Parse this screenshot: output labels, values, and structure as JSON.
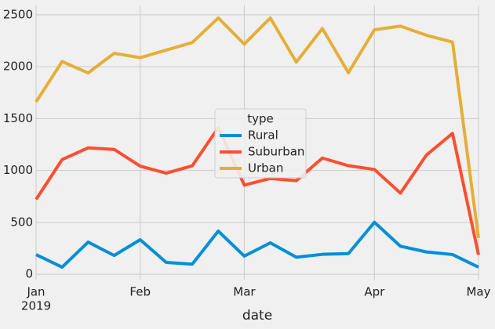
{
  "chart_data": {
    "type": "line",
    "x_label": "date",
    "categories": [
      "Jan",
      null,
      null,
      null,
      "Feb",
      null,
      null,
      null,
      "Mar",
      null,
      null,
      null,
      null,
      "Apr",
      null,
      null,
      null,
      "May"
    ],
    "year_label": "2019",
    "series": [
      {
        "name": "Rural",
        "color": "#008fd5",
        "values": [
          189,
          68,
          310,
          181,
          333,
          114,
          97,
          416,
          175,
          303,
          164,
          192,
          199,
          501,
          270,
          215,
          190,
          68
        ]
      },
      {
        "name": "Suburban",
        "color": "#fc4f30",
        "values": [
          721,
          1105,
          1218,
          1203,
          1042,
          974,
          1045,
          1412,
          859,
          923,
          902,
          1120,
          1046,
          1010,
          782,
          1149,
          1357,
          187
        ]
      },
      {
        "name": "Urban",
        "color": "#e5ae38",
        "values": [
          1661,
          2050,
          1940,
          2129,
          2087,
          2160,
          2233,
          2470,
          2218,
          2470,
          2044,
          2368,
          1942,
          2356,
          2391,
          2303,
          2238,
          349
        ]
      }
    ],
    "legend_title": "type",
    "legend": "center",
    "ylim": [
      -52,
      2590
    ],
    "yticks": [
      0,
      500,
      1000,
      1500,
      2000,
      2500
    ],
    "grid": true
  }
}
